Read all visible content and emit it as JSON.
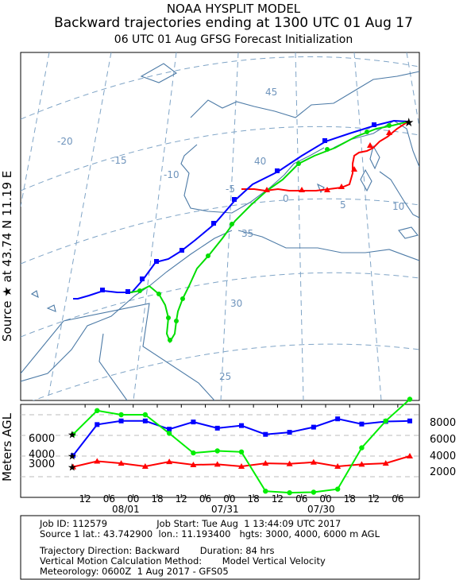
{
  "header": {
    "model": "NOAA HYSPLIT MODEL",
    "title": "Backward trajectories ending at 1300 UTC 01 Aug 17",
    "subtitle": "06 UTC 01 Aug    GFSG  Forecast Initialization"
  },
  "side_label": "Source ★ at    43.74 N    11.19 E",
  "footer": {
    "line1_left": "Job ID: 112579",
    "line1_right": "Job Start: Tue Aug  1 13:44:09 UTC 2017",
    "line2_left": "Source 1 lat.: 43.742900  lon.: 11.193400",
    "line2_right": "hgts: 3000, 4000, 6000 m AGL",
    "line3_left": "Trajectory Direction: Backward",
    "line3_right": "Duration: 84 hrs",
    "line4_left": "Vertical Motion Calculation Method:",
    "line4_right": "Model Vertical Velocity",
    "line5": "Meteorology: 0600Z  1 Aug 2017 - GFS05"
  },
  "map": {
    "lat_labels": [
      "45",
      "40",
      "35",
      "30",
      "25"
    ],
    "lon_labels": [
      "-20",
      "-15",
      "-10",
      "-5",
      "0",
      "5",
      "10"
    ],
    "colors": {
      "traj_3000": "#ff0000",
      "traj_4000": "#0000ff",
      "traj_6000": "#00ee00",
      "grid": "#7fa4c6",
      "coast": "#4c7aa6"
    }
  },
  "chart_data": {
    "type": "line",
    "ylabel": "Meters AGL",
    "y_ticks_right": [
      "8000",
      "6000",
      "4000",
      "2000"
    ],
    "y_ticks_left": [
      "6000",
      "4000",
      "3000"
    ],
    "ylim": [
      0,
      9000
    ],
    "x_tick_labels": [
      "12",
      "06",
      "00",
      "18",
      "12",
      "06",
      "00",
      "18",
      "12",
      "06",
      "00",
      "18",
      "12",
      "06"
    ],
    "date_labels": [
      "08/01",
      "07/31",
      "07/30"
    ],
    "x_hours_back": [
      0,
      6,
      12,
      18,
      24,
      30,
      36,
      42,
      48,
      54,
      60,
      66,
      72,
      78,
      84
    ],
    "series": [
      {
        "label": "3000",
        "color": "#ff0000",
        "values": [
          2950,
          3500,
          3300,
          3000,
          3450,
          3150,
          3200,
          3000,
          3300,
          3250,
          3400,
          3000,
          3200,
          3300,
          4000
        ]
      },
      {
        "label": "4000",
        "color": "#0000ff",
        "values": [
          4050,
          7050,
          7400,
          7400,
          6600,
          7300,
          6700,
          6950,
          6100,
          6300,
          6800,
          7600,
          7100,
          7350,
          7400
        ]
      },
      {
        "label": "6000",
        "color": "#00ee00",
        "values": [
          6100,
          8400,
          8000,
          8000,
          6200,
          4300,
          4500,
          4400,
          600,
          450,
          500,
          800,
          4800,
          7400,
          9500
        ]
      }
    ]
  }
}
